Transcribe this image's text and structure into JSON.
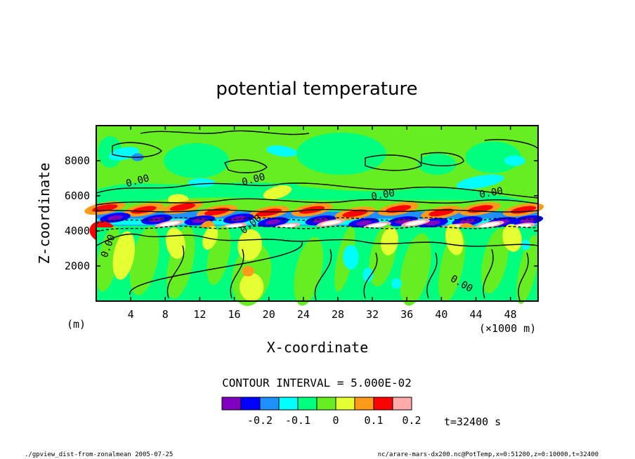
{
  "chart_data": {
    "type": "heatmap",
    "title": "potential temperature",
    "xlabel": "X-coordinate",
    "ylabel": "Z-coordinate",
    "x_unit_label": "(×1000 m)",
    "y_unit_label": "(m)",
    "xlim": [
      0,
      51.2
    ],
    "ylim": [
      0,
      10000
    ],
    "x_ticks": [
      4,
      8,
      12,
      16,
      20,
      24,
      28,
      32,
      36,
      40,
      44,
      48
    ],
    "y_ticks": [
      2000,
      4000,
      6000,
      8000
    ],
    "contour_interval_text": "CONTOUR INTERVAL = 5.000E-02",
    "contour_labels": [
      "0.00",
      "0.00",
      "0.00",
      "0.00",
      "0.00",
      "0.00",
      "0.00"
    ],
    "colorbar": {
      "colors": [
        "#8000c0",
        "#0000ff",
        "#1e90ff",
        "#00ffff",
        "#00ff7f",
        "#66ee22",
        "#e6ff33",
        "#ff9a1a",
        "#ff0000",
        "#ffaaaa"
      ],
      "tick_labels": [
        "-0.2",
        "-0.1",
        "0",
        "0.1",
        "0.2"
      ]
    },
    "time_label": "t=32400 s",
    "band_center_z": 4500,
    "background_value": 0.0
  },
  "footer": {
    "left": "./gpview_dist-from-zonalmean  2005-07-25",
    "right": "nc/arare-mars-dx200.nc@PotTemp,x=0:51200,z=0:10000,t=32400"
  }
}
